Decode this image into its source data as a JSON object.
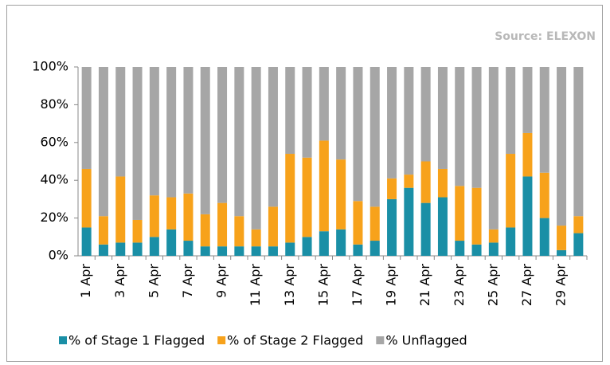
{
  "chart_data": {
    "type": "stacked_bar",
    "source": "Source: ELEXON",
    "categories": [
      "1 Apr",
      null,
      "3 Apr",
      null,
      "5 Apr",
      null,
      "7 Apr",
      null,
      "9 Apr",
      null,
      "11 Apr",
      null,
      "13 Apr",
      null,
      "15 Apr",
      null,
      "17 Apr",
      null,
      "19 Apr",
      null,
      "21 Apr",
      null,
      "23 Apr",
      null,
      "25 Apr",
      null,
      "27 Apr",
      null,
      "29 Apr",
      null
    ],
    "series": [
      {
        "name": "% of Stage 1 Flagged",
        "color": "#1a8fa6",
        "values": [
          15,
          6,
          7,
          7,
          10,
          14,
          8,
          5,
          5,
          5,
          5,
          5,
          7,
          10,
          13,
          14,
          6,
          8,
          30,
          36,
          28,
          31,
          8,
          6,
          7,
          15,
          42,
          20,
          3,
          12
        ]
      },
      {
        "name": "% of Stage 2 Flagged",
        "color": "#f7a21b",
        "values": [
          31,
          15,
          35,
          12,
          22,
          17,
          25,
          17,
          23,
          16,
          9,
          21,
          47,
          42,
          48,
          37,
          23,
          18,
          11,
          7,
          22,
          15,
          29,
          30,
          7,
          39,
          23,
          24,
          13,
          9
        ]
      },
      {
        "name": "% Unflagged",
        "color": "#a6a6a6",
        "values": [
          54,
          79,
          58,
          81,
          68,
          69,
          67,
          78,
          72,
          79,
          86,
          74,
          46,
          48,
          39,
          49,
          71,
          74,
          59,
          57,
          50,
          54,
          63,
          64,
          86,
          46,
          35,
          56,
          84,
          79
        ]
      }
    ],
    "ylim": [
      0,
      100
    ],
    "yticks": [
      {
        "value": 0,
        "label": "0%"
      },
      {
        "value": 20,
        "label": "20%"
      },
      {
        "value": 40,
        "label": "40%"
      },
      {
        "value": 60,
        "label": "60%"
      },
      {
        "value": 80,
        "label": "80%"
      },
      {
        "value": 100,
        "label": "100%"
      }
    ]
  }
}
